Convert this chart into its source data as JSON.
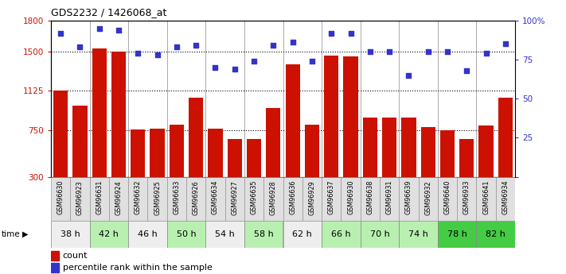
{
  "title": "GDS2232 / 1426068_at",
  "samples": [
    "GSM96630",
    "GSM96923",
    "GSM96631",
    "GSM96924",
    "GSM96632",
    "GSM96925",
    "GSM96633",
    "GSM96926",
    "GSM96634",
    "GSM96927",
    "GSM96635",
    "GSM96928",
    "GSM96636",
    "GSM96929",
    "GSM96637",
    "GSM96930",
    "GSM96638",
    "GSM96931",
    "GSM96639",
    "GSM96932",
    "GSM96640",
    "GSM96933",
    "GSM96641",
    "GSM96934"
  ],
  "counts": [
    1130,
    980,
    1530,
    1500,
    755,
    760,
    800,
    1060,
    760,
    660,
    660,
    960,
    1380,
    800,
    1460,
    1455,
    870,
    870,
    870,
    780,
    750,
    660,
    790,
    1060
  ],
  "percentiles": [
    92,
    83,
    95,
    94,
    79,
    78,
    83,
    84,
    70,
    69,
    74,
    84,
    86,
    74,
    92,
    92,
    80,
    80,
    65,
    80,
    80,
    68,
    79,
    85
  ],
  "time_groups": [
    {
      "label": "38 h",
      "start": 0,
      "end": 2
    },
    {
      "label": "42 h",
      "start": 2,
      "end": 4
    },
    {
      "label": "46 h",
      "start": 4,
      "end": 6
    },
    {
      "label": "50 h",
      "start": 6,
      "end": 8
    },
    {
      "label": "54 h",
      "start": 8,
      "end": 10
    },
    {
      "label": "58 h",
      "start": 10,
      "end": 12
    },
    {
      "label": "62 h",
      "start": 12,
      "end": 14
    },
    {
      "label": "66 h",
      "start": 14,
      "end": 16
    },
    {
      "label": "70 h",
      "start": 16,
      "end": 18
    },
    {
      "label": "74 h",
      "start": 18,
      "end": 20
    },
    {
      "label": "78 h",
      "start": 20,
      "end": 22
    },
    {
      "label": "82 h",
      "start": 22,
      "end": 24
    }
  ],
  "group_colors": [
    "#eeeeee",
    "#b8f0b0",
    "#eeeeee",
    "#b8f0b0",
    "#eeeeee",
    "#b8f0b0",
    "#eeeeee",
    "#b8f0b0",
    "#b8f0b0",
    "#b8f0b0",
    "#44cc44",
    "#44cc44"
  ],
  "sample_bg": "#e0e0e0",
  "bar_color": "#cc1100",
  "dot_color": "#3333cc",
  "ylim_left": [
    300,
    1800
  ],
  "ylim_right": [
    0,
    100
  ],
  "yticks_left": [
    300,
    750,
    1125,
    1500,
    1800
  ],
  "yticks_right": [
    0,
    25,
    50,
    75,
    100
  ],
  "bg_color": "#ffffff",
  "plot_bg": "#ffffff"
}
